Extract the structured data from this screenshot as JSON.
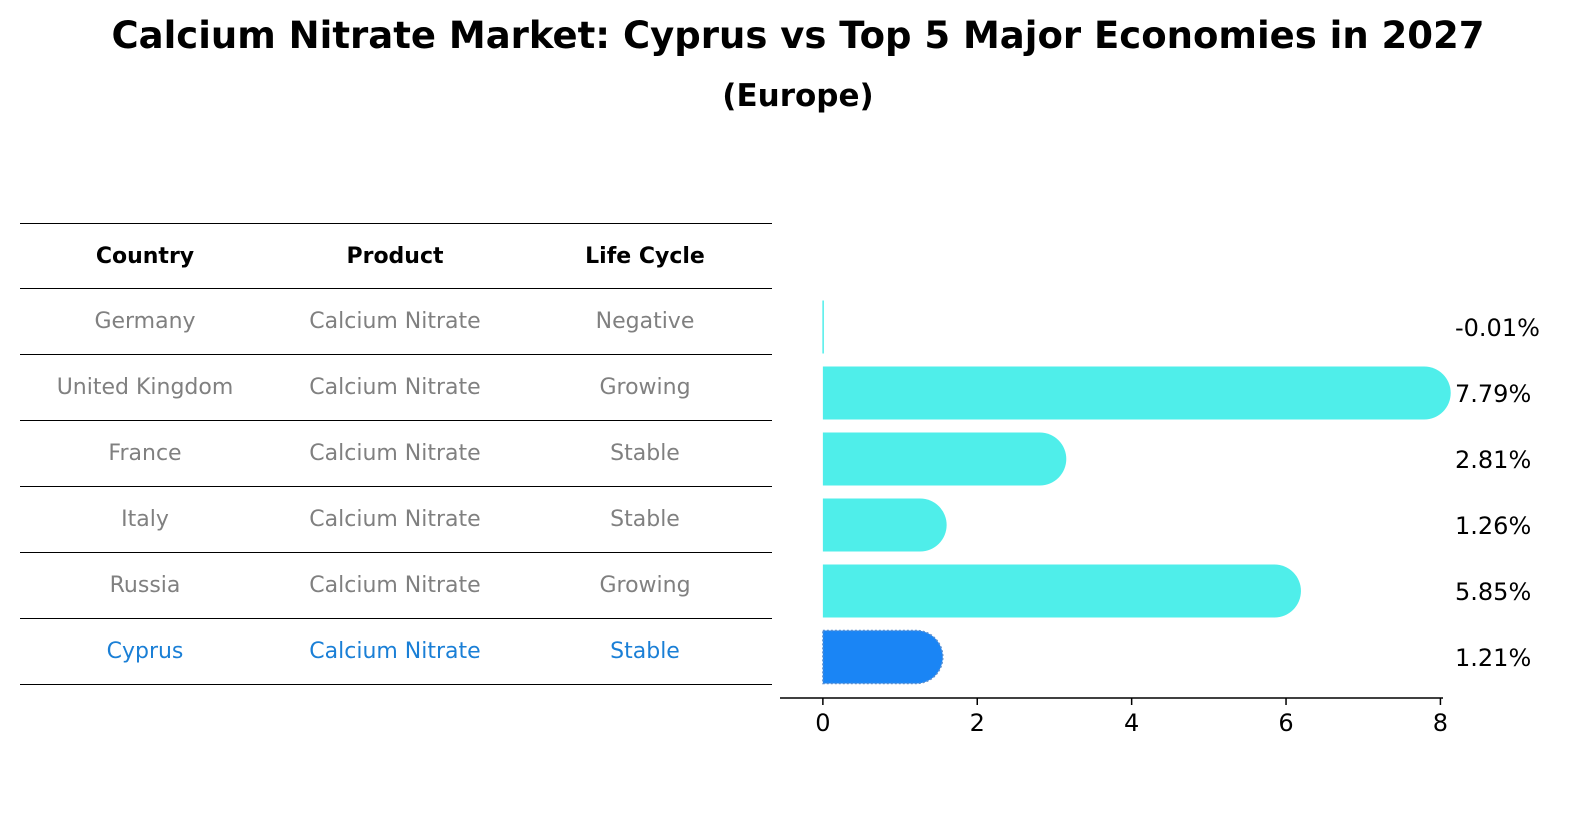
{
  "header": {
    "title": "Calcium Nitrate Market: Cyprus vs Top 5 Major Economies in 2027",
    "subtitle": "(Europe)"
  },
  "table": {
    "columns": [
      "Country",
      "Product",
      "Life Cycle"
    ],
    "rows": [
      {
        "country": "Germany",
        "product": "Calcium Nitrate",
        "life_cycle": "Negative"
      },
      {
        "country": "United Kingdom",
        "product": "Calcium Nitrate",
        "life_cycle": "Growing"
      },
      {
        "country": "France",
        "product": "Calcium Nitrate",
        "life_cycle": "Stable"
      },
      {
        "country": "Italy",
        "product": "Calcium Nitrate",
        "life_cycle": "Stable"
      },
      {
        "country": "Russia",
        "product": "Calcium Nitrate",
        "life_cycle": "Growing"
      },
      {
        "country": "Cyprus",
        "product": "Calcium Nitrate",
        "life_cycle": "Stable",
        "highlight": true
      }
    ]
  },
  "chart_data": {
    "type": "bar",
    "orientation": "horizontal",
    "categories": [
      "Germany",
      "United Kingdom",
      "France",
      "Italy",
      "Russia",
      "Cyprus"
    ],
    "values": [
      -0.01,
      7.79,
      2.81,
      1.26,
      5.85,
      1.21
    ],
    "value_labels": [
      "-0.01%",
      "7.79%",
      "2.81%",
      "1.26%",
      "5.85%",
      "1.21%"
    ],
    "highlight_index": 5,
    "xlim": [
      -0.4,
      8.15
    ],
    "xticks": [
      0,
      2,
      4,
      6,
      8
    ],
    "grid": false,
    "colors": {
      "default": "#4feeea",
      "highlight": "#1a85f5"
    }
  }
}
